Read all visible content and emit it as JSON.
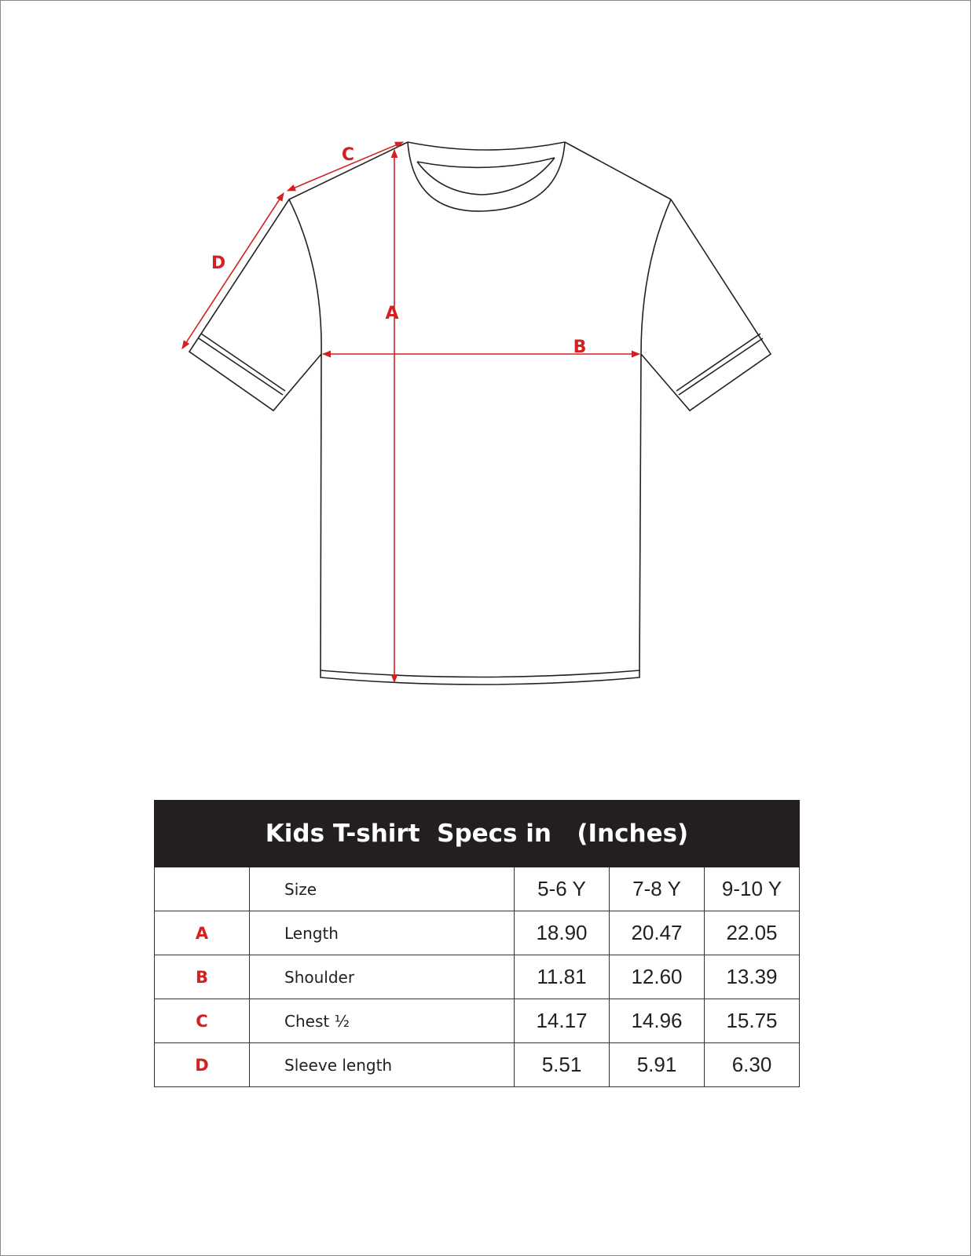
{
  "diagram": {
    "labels": {
      "a": "A",
      "b": "B",
      "c": "C",
      "d": "D"
    },
    "outline_color": "#222222",
    "arrow_color": "#d42020"
  },
  "table": {
    "title": "Kids T-shirt  Specs in   (Inches)",
    "header_bg": "#231f20",
    "size_label": "Size",
    "sizes": [
      "5-6 Y",
      "7-8 Y",
      "9-10 Y"
    ],
    "rows": [
      {
        "letter": "A",
        "name": "Length",
        "values": [
          "18.90",
          "20.47",
          "22.05"
        ]
      },
      {
        "letter": "B",
        "name": "Shoulder",
        "values": [
          "11.81",
          "12.60",
          "13.39"
        ]
      },
      {
        "letter": "C",
        "name": "Chest ½",
        "values": [
          "14.17",
          "14.96",
          "15.75"
        ]
      },
      {
        "letter": "D",
        "name": "Sleeve length",
        "values": [
          "5.51",
          "5.91",
          "6.30"
        ]
      }
    ]
  }
}
